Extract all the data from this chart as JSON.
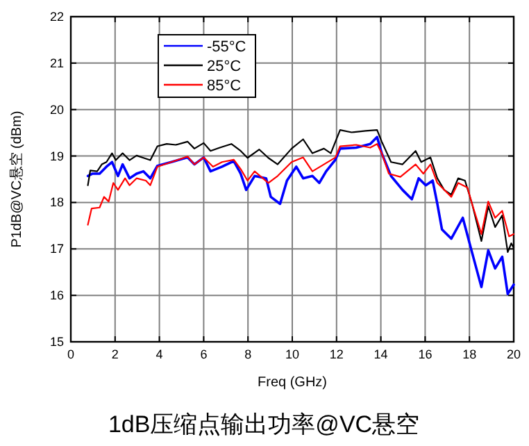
{
  "chart_data": {
    "type": "line",
    "title": "1dB压缩点输出功率@VC悬空",
    "xlabel": "Freq (GHz)",
    "ylabel": "P1dB@VC悬空 (dBm)",
    "xlim": [
      0,
      20
    ],
    "ylim": [
      15,
      22
    ],
    "xticks": [
      0,
      2,
      4,
      6,
      8,
      10,
      12,
      14,
      16,
      18,
      20
    ],
    "yticks": [
      15,
      16,
      17,
      18,
      19,
      20,
      21,
      22
    ],
    "grid": true,
    "legend": "top left",
    "marker": "none",
    "line_style": "solid",
    "series": [
      {
        "name": "-55°C",
        "color": "#0000ff",
        "x": [
          0.77,
          0.98,
          1.3,
          1.61,
          1.86,
          2.13,
          2.34,
          2.65,
          2.97,
          3.28,
          3.59,
          3.91,
          4.54,
          5.27,
          5.58,
          6.0,
          6.31,
          6.83,
          7.36,
          7.67,
          7.92,
          8.3,
          8.82,
          9.03,
          9.45,
          9.76,
          10.18,
          10.49,
          10.91,
          11.22,
          11.53,
          11.95,
          12.16,
          12.89,
          13.52,
          13.83,
          14.04,
          14.46,
          14.98,
          15.4,
          15.71,
          16.03,
          16.34,
          16.55,
          16.76,
          17.18,
          17.7,
          18.12,
          18.54,
          18.85,
          19.16,
          19.48,
          19.73,
          20.0
        ],
        "values": [
          18.57,
          18.62,
          18.62,
          18.77,
          18.87,
          18.57,
          18.82,
          18.52,
          18.62,
          18.67,
          18.52,
          18.79,
          18.87,
          18.97,
          18.82,
          18.97,
          18.67,
          18.77,
          18.89,
          18.62,
          18.27,
          18.57,
          18.52,
          18.12,
          17.97,
          18.47,
          18.77,
          18.52,
          18.57,
          18.42,
          18.67,
          18.92,
          19.16,
          19.18,
          19.26,
          19.41,
          19.06,
          18.57,
          18.27,
          18.07,
          18.52,
          18.37,
          18.47,
          17.97,
          17.42,
          17.22,
          17.67,
          16.92,
          16.18,
          16.97,
          16.58,
          16.83,
          16.03,
          16.23
        ]
      },
      {
        "name": "25°C",
        "color": "#000000",
        "x": [
          0.77,
          0.88,
          1.19,
          1.4,
          1.61,
          1.86,
          2.03,
          2.34,
          2.65,
          2.97,
          3.28,
          3.59,
          3.91,
          4.33,
          4.74,
          5.27,
          5.58,
          6.0,
          6.31,
          6.73,
          7.25,
          7.67,
          7.98,
          8.51,
          8.92,
          9.34,
          9.97,
          10.49,
          10.91,
          11.43,
          11.74,
          12.16,
          12.68,
          13.31,
          13.83,
          14.04,
          14.46,
          14.98,
          15.57,
          15.82,
          16.24,
          16.55,
          16.86,
          17.18,
          17.49,
          17.8,
          18.12,
          18.54,
          18.85,
          19.16,
          19.48,
          19.73,
          19.89,
          20.0
        ],
        "values": [
          18.37,
          18.69,
          18.67,
          18.82,
          18.87,
          19.06,
          18.91,
          19.06,
          18.91,
          19.01,
          18.96,
          18.91,
          19.21,
          19.26,
          19.24,
          19.31,
          19.16,
          19.28,
          19.11,
          19.18,
          19.26,
          19.11,
          18.96,
          19.14,
          18.96,
          18.82,
          19.16,
          19.36,
          19.06,
          19.16,
          19.06,
          19.56,
          19.51,
          19.54,
          19.56,
          19.31,
          18.87,
          18.82,
          19.11,
          18.87,
          18.97,
          18.52,
          18.27,
          18.17,
          18.52,
          18.47,
          17.97,
          17.17,
          17.92,
          17.47,
          17.72,
          16.93,
          17.12,
          17.02
        ]
      },
      {
        "name": "85°C",
        "color": "#ff0000",
        "x": [
          0.77,
          0.94,
          1.3,
          1.5,
          1.71,
          1.92,
          2.13,
          2.45,
          2.65,
          2.97,
          3.39,
          3.59,
          3.91,
          4.54,
          5.27,
          5.58,
          6.0,
          6.42,
          6.83,
          7.36,
          7.67,
          7.98,
          8.3,
          8.92,
          9.34,
          9.97,
          10.49,
          10.91,
          11.43,
          11.95,
          12.16,
          12.89,
          13.52,
          13.83,
          14.04,
          14.36,
          14.88,
          15.57,
          15.92,
          16.24,
          16.55,
          17.18,
          17.49,
          17.91,
          18.12,
          18.54,
          18.85,
          19.16,
          19.48,
          19.79,
          20.0
        ],
        "values": [
          17.52,
          17.87,
          17.89,
          18.12,
          18.02,
          18.42,
          18.27,
          18.52,
          18.37,
          18.52,
          18.47,
          18.37,
          18.77,
          18.87,
          18.99,
          18.82,
          18.97,
          18.77,
          18.87,
          18.92,
          18.72,
          18.47,
          18.67,
          18.42,
          18.57,
          18.87,
          18.97,
          18.67,
          18.82,
          18.97,
          19.21,
          19.24,
          19.18,
          19.26,
          19.06,
          18.62,
          18.55,
          18.82,
          18.62,
          18.82,
          18.42,
          18.12,
          18.42,
          18.32,
          17.97,
          17.32,
          18.02,
          17.67,
          17.82,
          17.27,
          17.32
        ]
      }
    ]
  }
}
